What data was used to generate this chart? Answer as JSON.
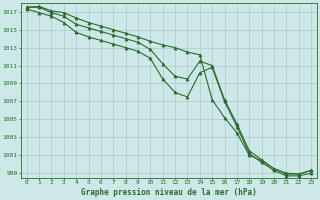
{
  "x": [
    0,
    1,
    2,
    3,
    4,
    5,
    6,
    7,
    8,
    9,
    10,
    11,
    12,
    13,
    14,
    15,
    16,
    17,
    18,
    19,
    20,
    21,
    22,
    23
  ],
  "line_top": [
    1017.5,
    1017.6,
    1017.1,
    1016.9,
    1016.3,
    1015.8,
    1015.4,
    1015.0,
    1014.6,
    1014.2,
    1013.7,
    1013.3,
    1013.0,
    1012.5,
    1012.2,
    1007.2,
    1005.2,
    1003.5,
    1001.0,
    1000.4,
    999.5,
    999.0,
    998.9,
    999.3
  ],
  "line_mid": [
    1017.5,
    1017.5,
    1016.9,
    1016.5,
    1015.6,
    1015.2,
    1014.8,
    1014.4,
    1014.0,
    1013.6,
    1012.8,
    1011.2,
    1009.8,
    1009.5,
    1011.5,
    1011.0,
    1007.2,
    1004.5,
    1001.5,
    1000.5,
    999.5,
    998.9,
    998.9,
    999.3
  ],
  "line_bot": [
    1017.3,
    1016.9,
    1016.5,
    1015.8,
    1014.7,
    1014.2,
    1013.8,
    1013.4,
    1013.0,
    1012.6,
    1011.8,
    1009.5,
    1008.0,
    1007.5,
    1010.2,
    1010.8,
    1007.0,
    1004.2,
    1001.2,
    1000.2,
    999.3,
    998.7,
    998.7,
    999.0
  ],
  "line_color": "#2d6a2d",
  "bg_color": "#cce8e8",
  "grid_color": "#b0c8c8",
  "axis_label_color": "#2d6a2d",
  "tick_color": "#2d6a2d",
  "xlabel": "Graphe pression niveau de la mer (hPa)",
  "ylim": [
    998.5,
    1018.0
  ],
  "yticks": [
    999,
    1001,
    1003,
    1005,
    1007,
    1009,
    1011,
    1013,
    1015,
    1017
  ],
  "xticks": [
    0,
    1,
    2,
    3,
    4,
    5,
    6,
    7,
    8,
    9,
    10,
    11,
    12,
    13,
    14,
    15,
    16,
    17,
    18,
    19,
    20,
    21,
    22,
    23
  ],
  "marker": "^",
  "markersize": 2.2,
  "linewidth": 0.8
}
